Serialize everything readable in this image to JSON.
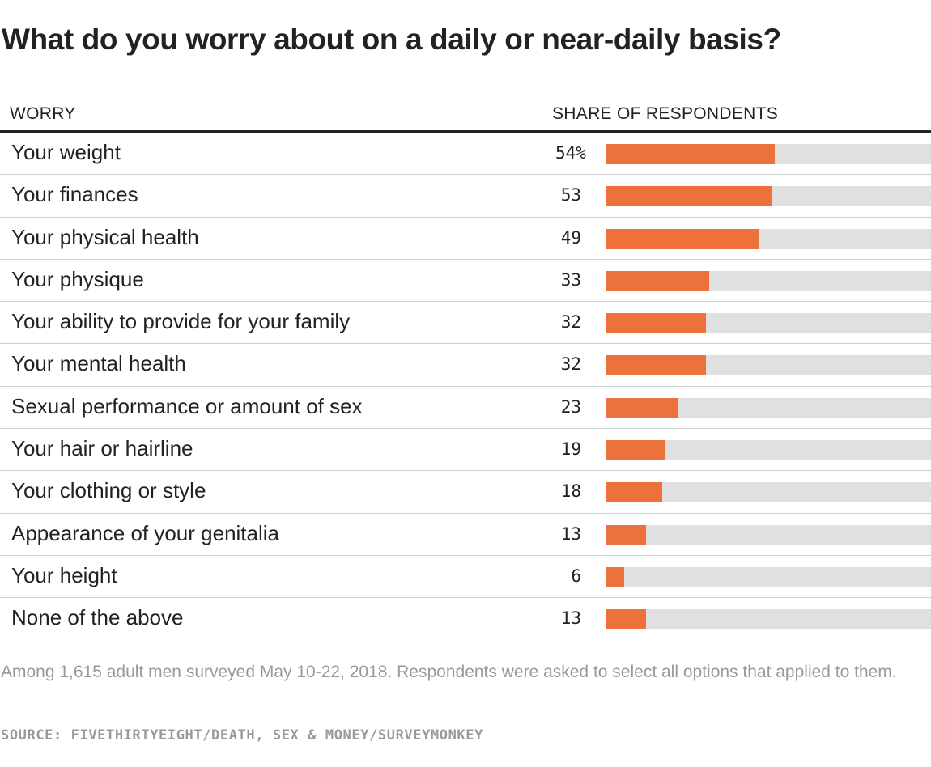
{
  "title": "What do you worry about on a daily or near-daily basis?",
  "columns": {
    "worry": "WORRY",
    "share": "SHARE OF RESPONDENTS"
  },
  "colors": {
    "bar": "#ed713a",
    "track": "#e0e0e0",
    "text": "#222222",
    "muted": "#999999"
  },
  "chart_data": {
    "type": "bar",
    "orientation": "horizontal",
    "title": "What do you worry about on a daily or near-daily basis?",
    "xlabel": "SHARE OF RESPONDENTS",
    "ylabel": "WORRY",
    "unit": "%",
    "xlim": [
      0,
      100
    ],
    "categories": [
      "Your weight",
      "Your finances",
      "Your physical health",
      "Your physique",
      "Your ability to provide for your family",
      "Your mental health",
      "Sexual performance or amount of sex",
      "Your hair or hairline",
      "Your clothing or style",
      "Appearance of your genitalia",
      "Your height",
      "None of the above"
    ],
    "values": [
      54,
      53,
      49,
      33,
      32,
      32,
      23,
      19,
      18,
      13,
      6,
      13
    ],
    "value_labels": [
      "54%",
      "53",
      "49",
      "33",
      "32",
      "32",
      "23",
      "19",
      "18",
      "13",
      "6",
      "13"
    ],
    "grid": false,
    "legend": "none"
  },
  "footnote": "Among 1,615 adult men surveyed May 10-22, 2018. Respondents were asked to select all options that applied to them.",
  "source": "SOURCE: FIVETHIRTYEIGHT/DEATH, SEX & MONEY/SURVEYMONKEY"
}
